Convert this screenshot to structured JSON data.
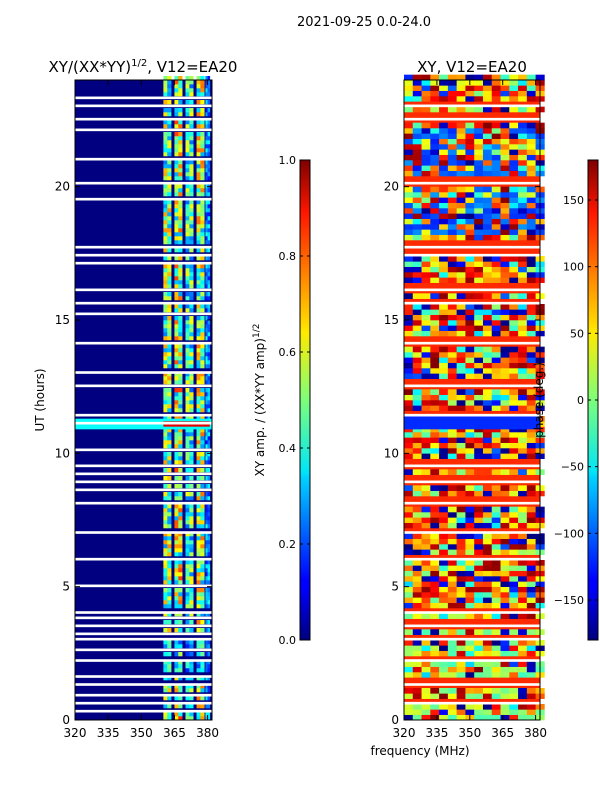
{
  "suptitle": "2021-09-25 0.0-24.0",
  "shared": {
    "xlabel": "frequency (MHz)",
    "ylabel": "UT (hours)",
    "x_ticks": [
      320,
      335,
      350,
      365,
      380
    ],
    "xlim": [
      320,
      382
    ],
    "y_ticks": [
      0,
      5,
      10,
      15,
      20
    ],
    "ylim": [
      0,
      24
    ]
  },
  "chart_data": [
    {
      "type": "heatmap",
      "title_main": "XY/(XX*YY)",
      "title_sup": "1/2",
      "title_rest": ", V12=EA20",
      "colorbar": {
        "label_main": "XY amp. / (XX*YY amp)",
        "label_sup": "1/2",
        "range": [
          0.0,
          1.0
        ],
        "ticks": [
          "0.0",
          "0.2",
          "0.4",
          "0.6",
          "0.8",
          "1.0"
        ]
      },
      "background_value": 0.0,
      "flagged_utc_hours": [
        0.3,
        0.6,
        0.9,
        1.3,
        1.6,
        2.2,
        2.6,
        3.0,
        3.2,
        3.5,
        3.8,
        4.0,
        5.0,
        6.0,
        7.0,
        8.1,
        8.6,
        8.9,
        9.2,
        9.5,
        10.1,
        11.1,
        11.4,
        12.5,
        13.0,
        14.1,
        15.2,
        15.6,
        16.1,
        17.1,
        17.4,
        17.7,
        19.5,
        20.1,
        21.0,
        22.1,
        22.5,
        23.0,
        23.3
      ],
      "band_columns_mhz": [
        {
          "start": 360,
          "end": 363.5,
          "level": 0.55
        },
        {
          "start": 365,
          "end": 368.5,
          "level": 0.62
        },
        {
          "start": 370,
          "end": 373.5,
          "level": 0.48
        },
        {
          "start": 375,
          "end": 378.5,
          "level": 0.58
        },
        {
          "start": 379,
          "end": 381,
          "level": 0.3
        }
      ],
      "notable_regions": [
        {
          "ut_start": 10.9,
          "ut_end": 11.3,
          "freq_start": 320,
          "freq_end": 382,
          "value": 0.38
        },
        {
          "ut_start": 11.0,
          "ut_end": 11.2,
          "freq_start": 360,
          "freq_end": 381,
          "value": 0.9
        }
      ]
    },
    {
      "type": "heatmap",
      "title_main": "XY, V12=EA20",
      "colorbar": {
        "label_main": "phase (deg.)",
        "range": [
          -180,
          180
        ],
        "ticks": [
          "150",
          "100",
          "50",
          "0",
          "−50",
          "−100",
          "−150"
        ],
        "tick_values": [
          150,
          100,
          50,
          0,
          -50,
          -100,
          -150
        ]
      },
      "dominant_phase_deg": 120,
      "flagged_utc_hours": [
        0.6,
        1.3,
        2.2,
        3.0,
        3.5,
        4.0,
        6.0,
        7.0,
        8.1,
        8.9,
        9.5,
        11.4,
        12.5,
        14.1,
        15.6,
        16.1,
        17.4,
        17.7,
        20.1,
        22.5,
        23.0
      ],
      "notable_regions": [
        {
          "ut_start": 10.9,
          "ut_end": 11.4,
          "freq_start": 320,
          "freq_end": 382,
          "phase": -120
        }
      ]
    }
  ]
}
